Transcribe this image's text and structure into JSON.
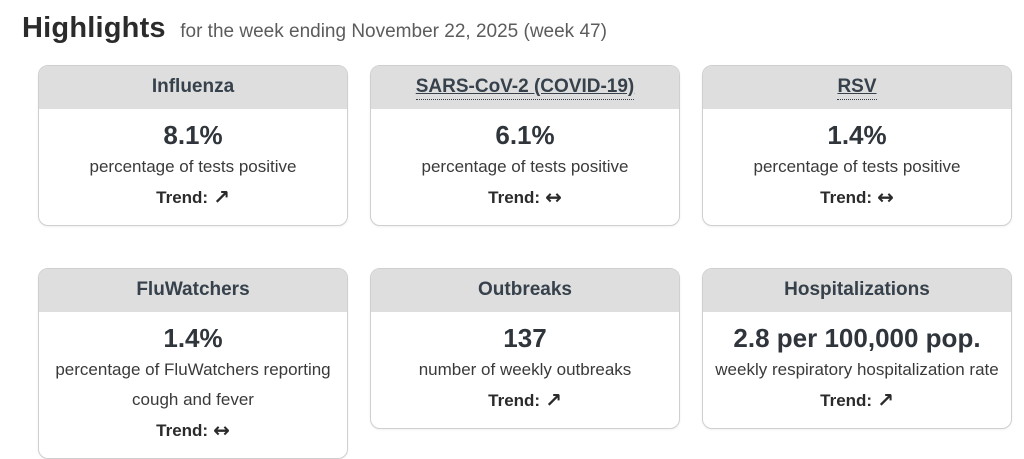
{
  "header": {
    "title": "Highlights",
    "subtitle": "for the week ending November 22, 2025 (week 47)"
  },
  "cards": [
    {
      "title": "Influenza",
      "linked": false,
      "value": "8.1%",
      "description": "percentage of tests positive",
      "trend_label": "Trend:",
      "trend_arrow": "↗"
    },
    {
      "title": "SARS-CoV-2 (COVID-19)",
      "linked": true,
      "value": "6.1%",
      "description": "percentage of tests positive",
      "trend_label": "Trend:",
      "trend_arrow": "↔"
    },
    {
      "title": "RSV",
      "linked": true,
      "value": "1.4%",
      "description": "percentage of tests positive",
      "trend_label": "Trend:",
      "trend_arrow": "↔"
    },
    {
      "title": "FluWatchers",
      "linked": false,
      "value": "1.4%",
      "description": "percentage of FluWatchers reporting cough and fever",
      "trend_label": "Trend:",
      "trend_arrow": "↔"
    },
    {
      "title": "Outbreaks",
      "linked": false,
      "value": "137",
      "description": "number of weekly outbreaks",
      "trend_label": "Trend:",
      "trend_arrow": "↗"
    },
    {
      "title": "Hospitalizations",
      "linked": false,
      "value": "2.8 per 100,000 pop.",
      "description": "weekly respiratory hospitalization rate",
      "trend_label": "Trend:",
      "trend_arrow": "↗"
    }
  ],
  "colors": {
    "card_header_bg": "#dedede",
    "card_border": "#cfcfcf",
    "title_text": "#36414b",
    "value_text": "#2f353b",
    "subtitle_text": "#5c5c5c",
    "page_bg": "#ffffff"
  }
}
